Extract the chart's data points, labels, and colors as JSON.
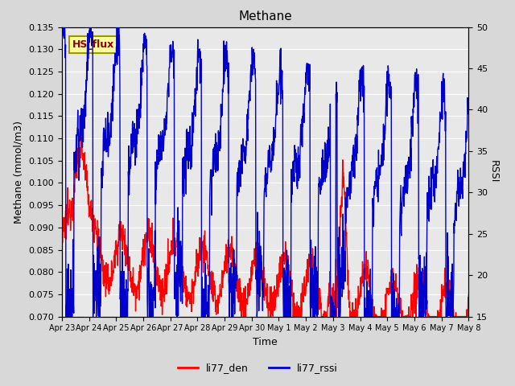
{
  "title": "Methane",
  "xlabel": "Time",
  "ylabel_left": "Methane (mmol/m3)",
  "ylabel_right": "RSSI",
  "ylim_left": [
    0.07,
    0.135
  ],
  "ylim_right": [
    15,
    50
  ],
  "yticks_left": [
    0.07,
    0.075,
    0.08,
    0.085,
    0.09,
    0.095,
    0.1,
    0.105,
    0.11,
    0.115,
    0.12,
    0.125,
    0.13,
    0.135
  ],
  "yticks_right": [
    15,
    20,
    25,
    30,
    35,
    40,
    45,
    50
  ],
  "xtick_labels": [
    "Apr 23",
    "Apr 24",
    "Apr 25",
    "Apr 26",
    "Apr 27",
    "Apr 28",
    "Apr 29",
    "Apr 30",
    "May 1",
    "May 2",
    "May 3",
    "May 4",
    "May 5",
    "May 6",
    "May 7",
    "May 8"
  ],
  "color_red": "#ff0000",
  "color_blue": "#0000cc",
  "legend_labels": [
    "li77_den",
    "li77_rssi"
  ],
  "annotation_text": "HS_flux",
  "annotation_bg": "#ffff99",
  "annotation_border": "#999900",
  "annotation_text_color": "#8B0000",
  "background_color": "#d8d8d8",
  "plot_bg": "#e8e8e8",
  "grid_color": "#ffffff",
  "linewidth": 1.0,
  "n_points": 1500,
  "title_fontsize": 11,
  "axis_fontsize": 9,
  "tick_fontsize": 8,
  "legend_fontsize": 9
}
